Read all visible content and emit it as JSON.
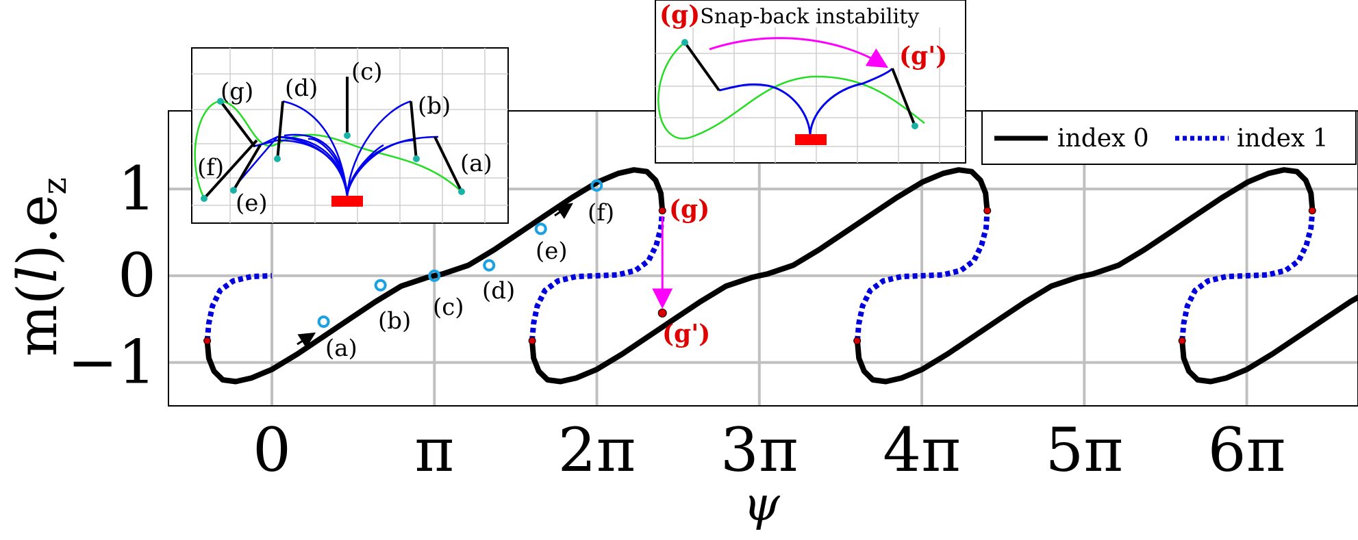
{
  "chart_data": {
    "type": "line",
    "xlabel": "ψ",
    "ylabel": "m(l).e_z",
    "ylabel_parts": {
      "main": "m(",
      "italic": "l",
      "close": ").e",
      "sub": "z"
    },
    "x_ticks": [
      {
        "value": 0,
        "label": "0"
      },
      {
        "value": 3.14159,
        "label": "π"
      },
      {
        "value": 6.28318,
        "label": "2π"
      },
      {
        "value": 9.42478,
        "label": "3π"
      },
      {
        "value": 12.56637,
        "label": "4π"
      },
      {
        "value": 15.70796,
        "label": "5π"
      },
      {
        "value": 18.84956,
        "label": "6π"
      }
    ],
    "y_ticks": [
      {
        "value": -1,
        "label": "−1"
      },
      {
        "value": 0,
        "label": "0"
      },
      {
        "value": 1,
        "label": "1"
      }
    ],
    "xlim": [
      -2.0,
      21.0
    ],
    "ylim": [
      -1.5,
      1.9
    ],
    "grid": true,
    "period": 6.28318,
    "branch_turn_points": {
      "lower": [
        -1.25,
        -0.75
      ],
      "upper": [
        7.55,
        0.75
      ]
    },
    "series": [
      {
        "name": "index 0",
        "style": "solid",
        "color": "#000000",
        "segments": [
          [
            [
              -1.25,
              -0.75
            ],
            [
              -1.22,
              -0.95
            ],
            [
              -1.12,
              -1.1
            ],
            [
              -0.95,
              -1.2
            ],
            [
              -0.7,
              -1.22
            ],
            [
              -0.4,
              -1.18
            ],
            [
              0.0,
              -1.08
            ],
            [
              0.5,
              -0.9
            ],
            [
              1.0,
              -0.7
            ],
            [
              1.5,
              -0.5
            ],
            [
              2.0,
              -0.3
            ],
            [
              2.5,
              -0.12
            ],
            [
              3.0,
              -0.02
            ],
            [
              3.14159,
              0.0
            ],
            [
              3.3,
              0.02
            ],
            [
              3.8,
              0.12
            ],
            [
              4.3,
              0.3
            ],
            [
              4.8,
              0.5
            ],
            [
              5.3,
              0.7
            ],
            [
              5.8,
              0.9
            ],
            [
              6.3,
              1.08
            ],
            [
              6.7,
              1.18
            ],
            [
              7.0,
              1.22
            ],
            [
              7.25,
              1.2
            ],
            [
              7.42,
              1.1
            ],
            [
              7.52,
              0.95
            ],
            [
              7.55,
              0.75
            ]
          ],
          [
            [
              5.03,
              -0.75
            ],
            [
              5.06,
              -0.95
            ],
            [
              5.16,
              -1.1
            ],
            [
              5.33,
              -1.2
            ],
            [
              5.58,
              -1.22
            ],
            [
              5.88,
              -1.18
            ],
            [
              6.28,
              -1.08
            ],
            [
              6.78,
              -0.9
            ],
            [
              7.28,
              -0.7
            ],
            [
              7.78,
              -0.5
            ],
            [
              8.28,
              -0.3
            ],
            [
              8.78,
              -0.12
            ],
            [
              9.28,
              -0.02
            ],
            [
              9.42,
              0.0
            ],
            [
              9.58,
              0.02
            ],
            [
              10.08,
              0.12
            ],
            [
              10.58,
              0.3
            ],
            [
              11.08,
              0.5
            ],
            [
              11.58,
              0.7
            ],
            [
              12.08,
              0.9
            ],
            [
              12.58,
              1.08
            ],
            [
              12.98,
              1.18
            ],
            [
              13.28,
              1.22
            ],
            [
              13.53,
              1.2
            ],
            [
              13.7,
              1.1
            ],
            [
              13.8,
              0.95
            ],
            [
              13.83,
              0.75
            ]
          ],
          [
            [
              11.32,
              -0.75
            ],
            [
              11.35,
              -0.95
            ],
            [
              11.45,
              -1.1
            ],
            [
              11.62,
              -1.2
            ],
            [
              11.87,
              -1.22
            ],
            [
              12.17,
              -1.18
            ],
            [
              12.57,
              -1.08
            ],
            [
              13.07,
              -0.9
            ],
            [
              13.57,
              -0.7
            ],
            [
              14.07,
              -0.5
            ],
            [
              14.57,
              -0.3
            ],
            [
              15.07,
              -0.12
            ],
            [
              15.57,
              -0.02
            ],
            [
              15.71,
              0.0
            ],
            [
              15.87,
              0.02
            ],
            [
              16.37,
              0.12
            ],
            [
              16.87,
              0.3
            ],
            [
              17.37,
              0.5
            ],
            [
              17.87,
              0.7
            ],
            [
              18.37,
              0.9
            ],
            [
              18.87,
              1.08
            ],
            [
              19.27,
              1.18
            ],
            [
              19.57,
              1.22
            ],
            [
              19.82,
              1.2
            ],
            [
              19.99,
              1.1
            ],
            [
              20.09,
              0.95
            ],
            [
              20.12,
              0.75
            ]
          ],
          [
            [
              17.6,
              -0.75
            ],
            [
              17.63,
              -0.95
            ],
            [
              17.73,
              -1.1
            ],
            [
              17.9,
              -1.2
            ],
            [
              18.15,
              -1.22
            ],
            [
              18.45,
              -1.18
            ],
            [
              18.85,
              -1.08
            ],
            [
              19.35,
              -0.9
            ],
            [
              19.85,
              -0.7
            ],
            [
              20.35,
              -0.5
            ],
            [
              20.85,
              -0.3
            ],
            [
              21.0,
              -0.25
            ]
          ]
        ]
      },
      {
        "name": "index 1",
        "style": "dotted",
        "color": "#0000dd",
        "segments": [
          [
            [
              -1.25,
              -0.75
            ],
            [
              -1.22,
              -0.55
            ],
            [
              -1.15,
              -0.35
            ],
            [
              -1.0,
              -0.17
            ],
            [
              -0.75,
              -0.06
            ],
            [
              -0.4,
              -0.01
            ],
            [
              0.0,
              0.0
            ]
          ],
          [
            [
              5.03,
              -0.75
            ],
            [
              5.06,
              -0.55
            ],
            [
              5.13,
              -0.35
            ],
            [
              5.28,
              -0.17
            ],
            [
              5.53,
              -0.06
            ],
            [
              5.88,
              -0.01
            ],
            [
              6.28,
              0.0
            ],
            [
              6.68,
              0.01
            ],
            [
              7.03,
              0.06
            ],
            [
              7.28,
              0.17
            ],
            [
              7.43,
              0.35
            ],
            [
              7.52,
              0.55
            ],
            [
              7.55,
              0.75
            ]
          ],
          [
            [
              11.32,
              -0.75
            ],
            [
              11.35,
              -0.55
            ],
            [
              11.42,
              -0.35
            ],
            [
              11.57,
              -0.17
            ],
            [
              11.82,
              -0.06
            ],
            [
              12.17,
              -0.01
            ],
            [
              12.57,
              0.0
            ],
            [
              12.97,
              0.01
            ],
            [
              13.32,
              0.06
            ],
            [
              13.57,
              0.17
            ],
            [
              13.72,
              0.35
            ],
            [
              13.81,
              0.55
            ],
            [
              13.83,
              0.75
            ]
          ],
          [
            [
              17.6,
              -0.75
            ],
            [
              17.63,
              -0.55
            ],
            [
              17.7,
              -0.35
            ],
            [
              17.85,
              -0.17
            ],
            [
              18.1,
              -0.06
            ],
            [
              18.45,
              -0.01
            ],
            [
              18.85,
              0.0
            ],
            [
              19.25,
              0.01
            ],
            [
              19.6,
              0.06
            ],
            [
              19.85,
              0.17
            ],
            [
              20.0,
              0.35
            ],
            [
              20.09,
              0.55
            ],
            [
              20.12,
              0.75
            ]
          ]
        ]
      }
    ],
    "marked_points": [
      {
        "label": "(a)",
        "x": 1.0,
        "y": -0.53
      },
      {
        "label": "(b)",
        "x": 2.1,
        "y": -0.11
      },
      {
        "label": "(c)",
        "x": 3.14159,
        "y": 0.0
      },
      {
        "label": "(d)",
        "x": 4.2,
        "y": 0.12
      },
      {
        "label": "(e)",
        "x": 5.2,
        "y": 0.54
      },
      {
        "label": "(f)",
        "x": 6.28,
        "y": 1.04
      }
    ],
    "instability": {
      "from_label": "(g)",
      "to_label": "(g')",
      "from": [
        7.55,
        0.75
      ],
      "to": [
        7.55,
        -0.43
      ]
    },
    "legend": {
      "position": "top-right",
      "entries": [
        {
          "label": "index 0",
          "style": "solid"
        },
        {
          "label": "index 1",
          "style": "dotted"
        }
      ]
    },
    "insets": [
      {
        "labels": [
          "(g)",
          "(d)",
          "(c)",
          "(b)",
          "(f)",
          "(e)",
          "(a)"
        ]
      },
      {
        "title": "Snap-back instability",
        "title_prefix": "(g)",
        "labels": [
          "(g')"
        ]
      }
    ]
  },
  "colors": {
    "index0": "#000000",
    "index1": "#0000dd",
    "marker_ring": "#1ba1e2",
    "turn_marker": "#d60000",
    "arrow": "#ff00ff",
    "inset_green": "#22dd22",
    "inset_blue": "#0000ee",
    "inset_base": "#ff0000",
    "inset_dot": "#19b3a6",
    "grid": "#c0c0c0"
  }
}
